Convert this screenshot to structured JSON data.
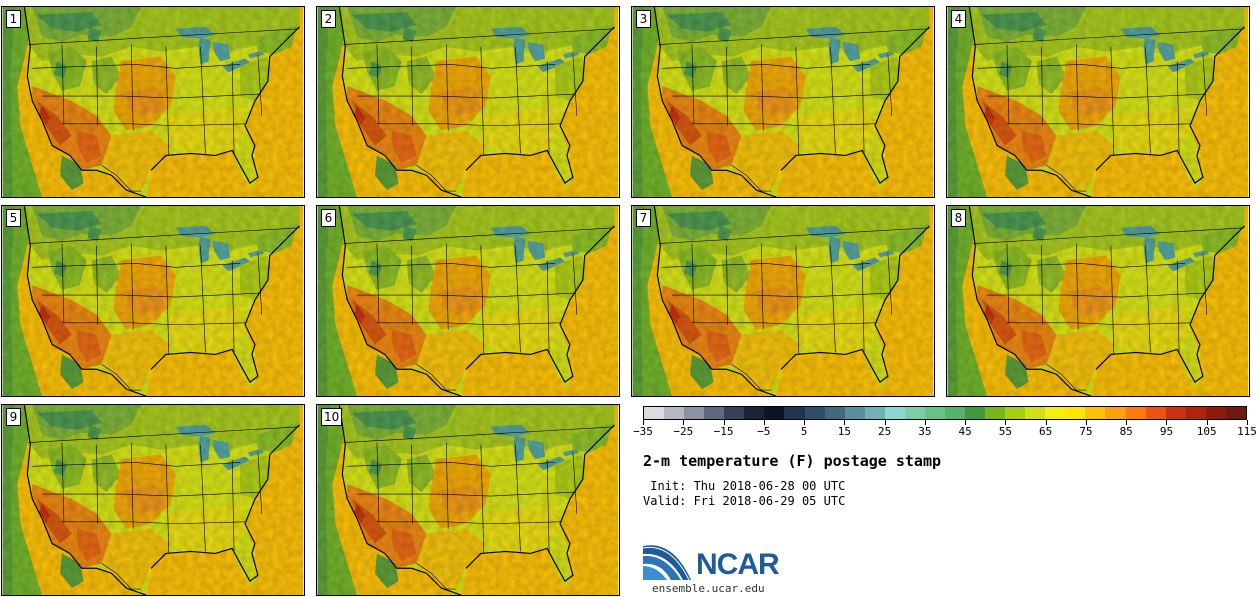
{
  "panels": [
    {
      "label": "1"
    },
    {
      "label": "2"
    },
    {
      "label": "3"
    },
    {
      "label": "4"
    },
    {
      "label": "5"
    },
    {
      "label": "6"
    },
    {
      "label": "7"
    },
    {
      "label": "8"
    },
    {
      "label": "9"
    },
    {
      "label": "10"
    }
  ],
  "colorbar": {
    "colors": [
      "#d9dce0",
      "#b3b8c2",
      "#8a92a3",
      "#5f6a80",
      "#36405a",
      "#1c2438",
      "#0c1428",
      "#1f3550",
      "#2f4f68",
      "#3f6a80",
      "#5a8f9f",
      "#73b0b8",
      "#8ed8d2",
      "#7ccfa6",
      "#68c389",
      "#55b26b",
      "#40983d",
      "#78b41e",
      "#a5cd12",
      "#cfe01a",
      "#f2ef13",
      "#ffe600",
      "#ffc20c",
      "#ff9f0f",
      "#ff7a10",
      "#f05114",
      "#cc3210",
      "#b0240e",
      "#8e1c0e",
      "#6e1a10"
    ],
    "tick_labels": [
      "−35",
      "−25",
      "−15",
      "−5",
      "5",
      "15",
      "25",
      "35",
      "45",
      "55",
      "65",
      "75",
      "85",
      "95",
      "105",
      "115"
    ]
  },
  "title": "2-m temperature (F) postage stamp",
  "init_text": " Init: Thu 2018-06-28 00 UTC",
  "valid_text": "Valid: Fri 2018-06-29 05 UTC",
  "logo": {
    "text": "NCAR",
    "url": "ensemble.ucar.edu"
  },
  "colors": {
    "ocean": "#fdc209",
    "land_warm": "#f8ee10",
    "plains": "#f4ab0a",
    "desert": "#ee7a14",
    "hot_spot": "#d43a10",
    "cool": "#94bf2a",
    "cold": "#4f9a53",
    "lake": "#56a4a0",
    "logo_blue": "#1f5a9a"
  }
}
